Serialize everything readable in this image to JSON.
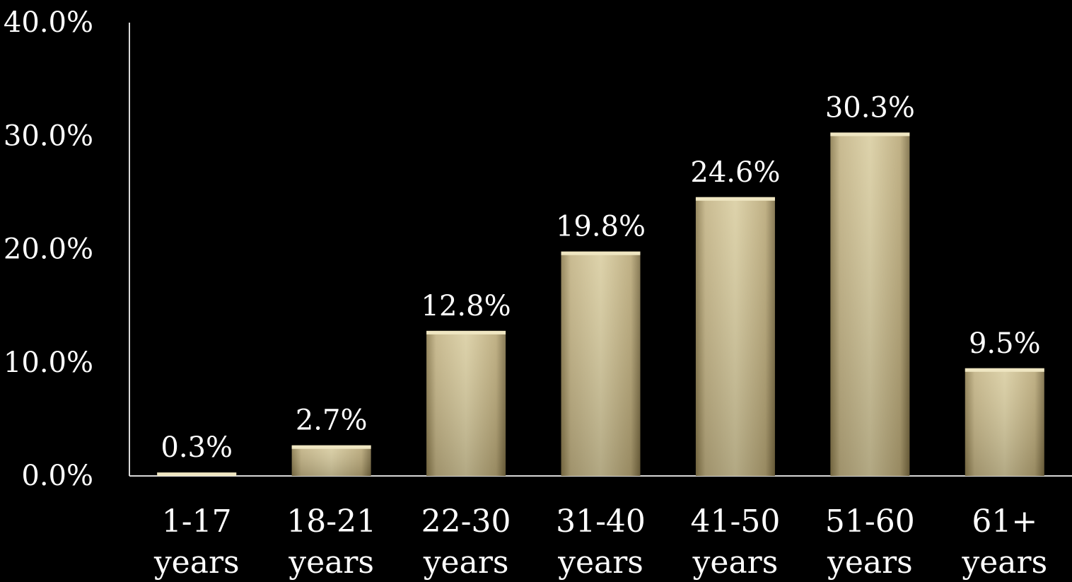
{
  "chart_data": {
    "type": "bar",
    "categories": [
      [
        "1-17",
        "years"
      ],
      [
        "18-21",
        "years"
      ],
      [
        "22-30",
        "years"
      ],
      [
        "31-40",
        "years"
      ],
      [
        "41-50",
        "years"
      ],
      [
        "51-60",
        "years"
      ],
      [
        "61+",
        "years"
      ]
    ],
    "values": [
      0.3,
      2.7,
      12.8,
      19.8,
      24.6,
      30.3,
      9.5
    ],
    "data_labels": [
      "0.3%",
      "2.7%",
      "12.8%",
      "19.8%",
      "24.6%",
      "30.3%",
      "9.5%"
    ],
    "y_ticks": [
      0,
      10,
      20,
      30,
      40
    ],
    "y_tick_labels": [
      "0.0%",
      "10.0%",
      "20.0%",
      "30.0%",
      "40.0%"
    ],
    "ylim": [
      0,
      40
    ],
    "grid": false,
    "legend": "none",
    "colors": {
      "background": "#000000",
      "bar_light": "#e6dcb4",
      "bar_mid": "#c8b88a",
      "bar_dark": "#7d6e45",
      "text": "#ffffff",
      "axis": "#d8d8d8"
    }
  }
}
